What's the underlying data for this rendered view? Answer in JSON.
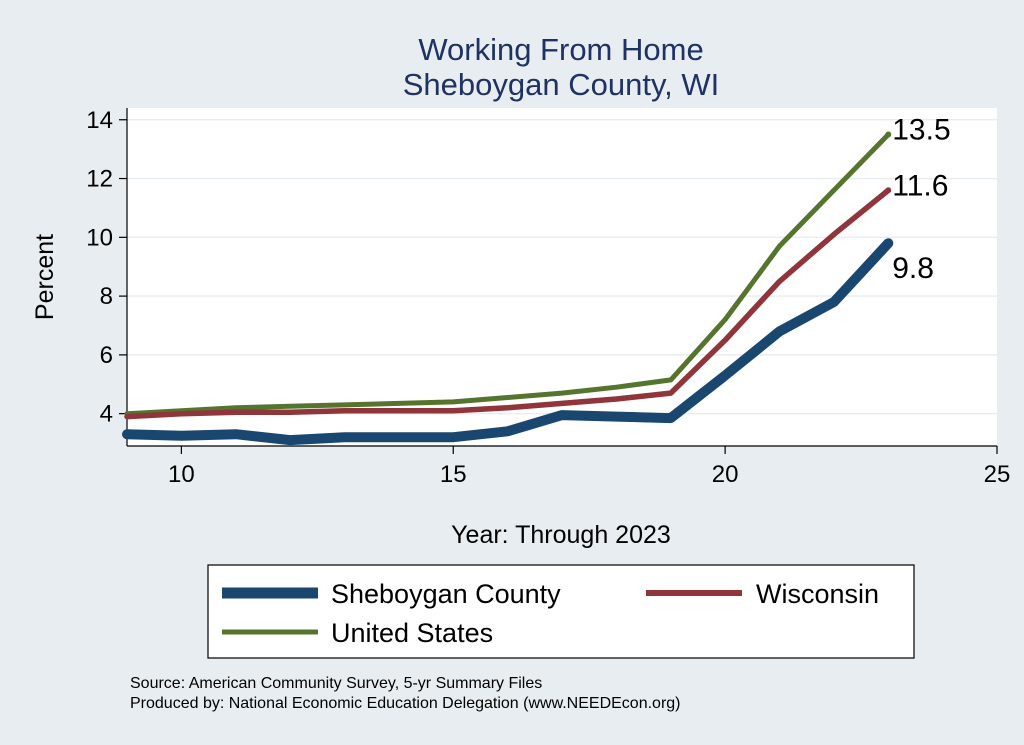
{
  "chart_data": {
    "type": "line",
    "title": "Working From Home",
    "subtitle": "Sheboygan County, WI",
    "xlabel": "Year: Through 2023",
    "ylabel": "Percent",
    "xlim": [
      9,
      25
    ],
    "ylim": [
      2.9,
      14.4
    ],
    "xticks": [
      10,
      15,
      20,
      25
    ],
    "yticks": [
      4,
      6,
      8,
      10,
      12,
      14
    ],
    "grid": true,
    "legend_position": "bottom",
    "series": [
      {
        "name": "Sheboygan County",
        "color": "#1a476f",
        "x": [
          9,
          10,
          11,
          12,
          13,
          14,
          15,
          16,
          17,
          18,
          19,
          20,
          21,
          22,
          23
        ],
        "values": [
          3.3,
          3.25,
          3.3,
          3.1,
          3.2,
          3.2,
          3.2,
          3.4,
          3.95,
          3.9,
          3.85,
          5.3,
          6.8,
          7.8,
          9.8
        ]
      },
      {
        "name": "Wisconsin",
        "color": "#90353b",
        "x": [
          9,
          10,
          11,
          12,
          13,
          14,
          15,
          16,
          17,
          18,
          19,
          20,
          21,
          22,
          23
        ],
        "values": [
          3.9,
          4.0,
          4.05,
          4.05,
          4.1,
          4.1,
          4.1,
          4.2,
          4.35,
          4.5,
          4.7,
          6.5,
          8.5,
          10.1,
          11.6
        ]
      },
      {
        "name": "United States",
        "color": "#55752f",
        "x": [
          9,
          10,
          11,
          12,
          13,
          14,
          15,
          16,
          17,
          18,
          19,
          20,
          21,
          22,
          23
        ],
        "values": [
          4.0,
          4.1,
          4.2,
          4.25,
          4.3,
          4.35,
          4.4,
          4.55,
          4.7,
          4.9,
          5.15,
          7.2,
          9.7,
          11.6,
          13.5
        ]
      }
    ],
    "end_labels": [
      {
        "series": 2,
        "text": "13.5"
      },
      {
        "series": 1,
        "text": "11.6"
      },
      {
        "series": 0,
        "text": "9.8"
      }
    ]
  },
  "notes": {
    "source": "Source: American Community Survey, 5-yr Summary Files",
    "produced_by": "Produced by: National Economic Education Delegation (www.NEEDEcon.org)"
  }
}
